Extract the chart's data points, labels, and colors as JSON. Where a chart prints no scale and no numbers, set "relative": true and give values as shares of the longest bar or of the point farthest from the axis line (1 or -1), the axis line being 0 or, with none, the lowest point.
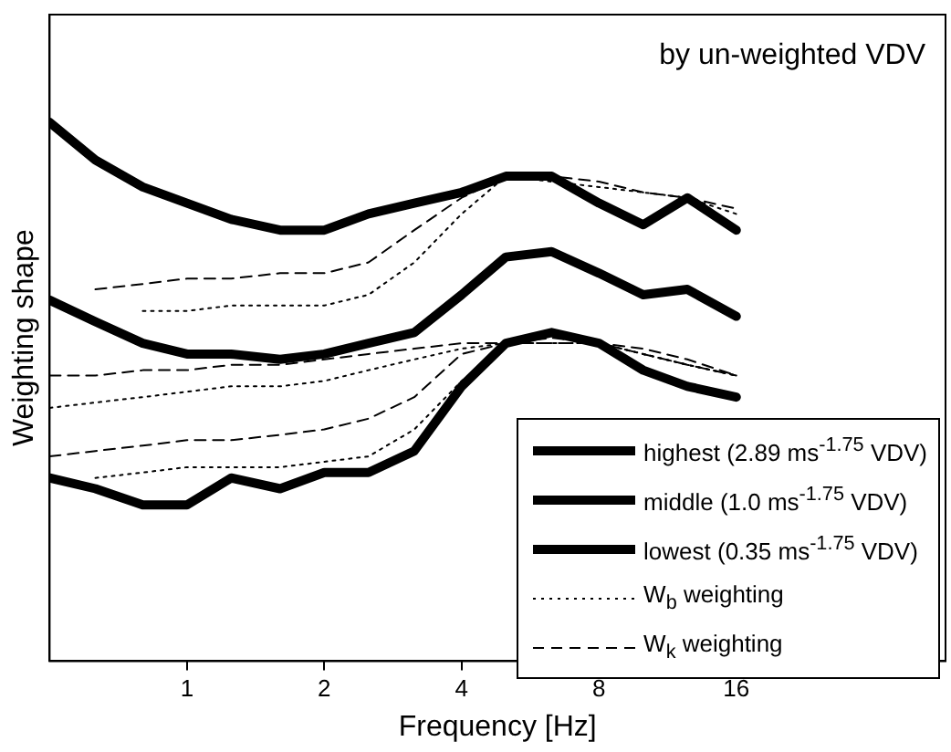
{
  "chart_data": {
    "type": "line",
    "title": "by un-weighted VDV",
    "xlabel": "Frequency [Hz]",
    "ylabel": "Weighting shape",
    "log": "x",
    "relative": true,
    "grid": false,
    "marker": "none",
    "legend": "bottom right",
    "xlim": [
      0.5,
      46
    ],
    "xticks": [
      1,
      2,
      4,
      8,
      16
    ],
    "x": [
      0.5,
      0.63,
      0.8,
      1,
      1.25,
      1.6,
      2,
      2.5,
      3.15,
      4,
      5,
      6.3,
      8,
      10,
      12.5,
      16
    ],
    "series": [
      {
        "name": "highest (2.89 ms$^{-1.75}$ VDV)",
        "color": "#000000",
        "line_style": "solid",
        "values": [
          1.0,
          0.93,
          0.88,
          0.85,
          0.82,
          0.8,
          0.8,
          0.83,
          0.85,
          0.87,
          0.9,
          0.9,
          0.85,
          0.81,
          0.86,
          0.8
        ]
      },
      {
        "name": "middle (1.0 ms$^{-1.75}$ VDV)",
        "color": "#000000",
        "line_style": "solid",
        "values": [
          0.67,
          0.63,
          0.59,
          0.57,
          0.57,
          0.56,
          0.57,
          0.59,
          0.61,
          0.68,
          0.75,
          0.76,
          0.72,
          0.68,
          0.69,
          0.64
        ]
      },
      {
        "name": "lowest (0.35 ms$^{-1.75}$ VDV)",
        "color": "#000000",
        "line_style": "solid",
        "values": [
          0.34,
          0.32,
          0.29,
          0.29,
          0.34,
          0.32,
          0.35,
          0.35,
          0.39,
          0.51,
          0.59,
          0.61,
          0.59,
          0.54,
          0.51,
          0.49
        ]
      },
      {
        "name": "W$_{b}$ weighting",
        "color": "#000000",
        "line_style": "dotted",
        "values": [
          null,
          null,
          0.65,
          0.65,
          0.66,
          0.66,
          0.66,
          0.68,
          0.74,
          0.83,
          0.9,
          0.89,
          0.88,
          0.87,
          0.86,
          0.83
        ]
      },
      {
        "name": "W$_{k}$ weighting",
        "color": "#000000",
        "line_style": "dashed",
        "values": [
          null,
          0.69,
          0.7,
          0.71,
          0.71,
          0.72,
          0.72,
          0.74,
          0.8,
          0.86,
          0.9,
          0.9,
          0.89,
          0.87,
          0.86,
          0.84
        ]
      },
      {
        "color": "#000000",
        "line_style": "dotted",
        "values": [
          0.47,
          0.48,
          0.49,
          0.5,
          0.51,
          0.51,
          0.52,
          0.54,
          0.56,
          0.58,
          0.59,
          0.59,
          0.59,
          0.57,
          0.55,
          0.53
        ]
      },
      {
        "color": "#000000",
        "line_style": "dashed",
        "values": [
          0.53,
          0.53,
          0.54,
          0.54,
          0.55,
          0.55,
          0.56,
          0.57,
          0.58,
          0.59,
          0.59,
          0.59,
          0.59,
          0.58,
          0.56,
          0.53
        ]
      },
      {
        "color": "#000000",
        "line_style": "dotted",
        "values": [
          null,
          0.34,
          0.35,
          0.36,
          0.36,
          0.36,
          0.37,
          0.38,
          0.43,
          0.52,
          0.59,
          0.59,
          0.59,
          0.57,
          0.55,
          0.53
        ]
      },
      {
        "color": "#000000",
        "line_style": "dashed",
        "values": [
          0.38,
          0.39,
          0.4,
          0.41,
          0.41,
          0.42,
          0.43,
          0.45,
          0.49,
          0.57,
          0.59,
          0.6,
          0.59,
          0.57,
          0.55,
          0.53
        ]
      }
    ]
  }
}
